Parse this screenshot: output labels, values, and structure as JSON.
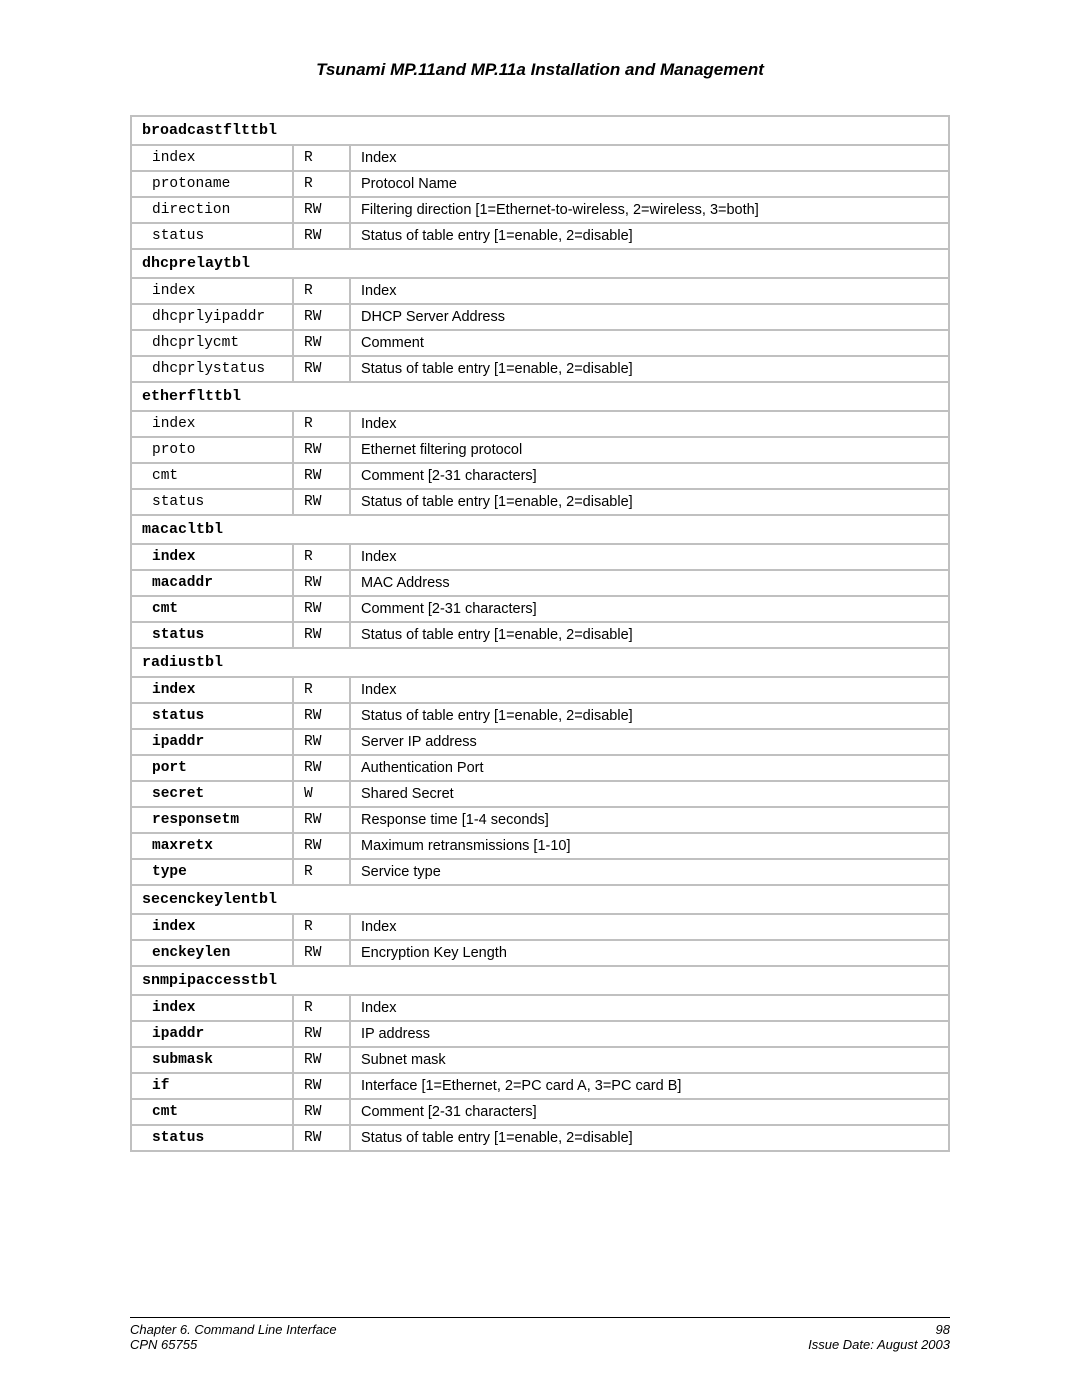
{
  "doc": {
    "title": "Tsunami MP.11and MP.11a Installation and Management",
    "footer": {
      "chapter": "Chapter 6.  Command Line Interface",
      "cpn": "CPN 65755",
      "page": "98",
      "issue": "Issue Date:  August 2003"
    }
  },
  "sections": {
    "broadcastflttbl": {
      "header": "broadcastflttbl",
      "rowbold": false,
      "rows": [
        {
          "name": "index",
          "access": "R",
          "desc": "Index"
        },
        {
          "name": "protoname",
          "access": "R",
          "desc": "Protocol Name"
        },
        {
          "name": "direction",
          "access": "RW",
          "desc": "Filtering direction [1=Ethernet-to-wireless, 2=wireless, 3=both]"
        },
        {
          "name": "status",
          "access": "RW",
          "desc": "Status of table entry [1=enable, 2=disable]"
        }
      ]
    },
    "dhcprelaytbl": {
      "header": "dhcprelaytbl",
      "rowbold": false,
      "rows": [
        {
          "name": "index",
          "access": "R",
          "desc": "Index"
        },
        {
          "name": "dhcprlyipaddr",
          "access": "RW",
          "desc": "DHCP Server Address"
        },
        {
          "name": "dhcprlycmt",
          "access": "RW",
          "desc": "Comment"
        },
        {
          "name": "dhcprlystatus",
          "access": "RW",
          "desc": "Status of table entry [1=enable, 2=disable]"
        }
      ]
    },
    "etherflttbl": {
      "header": "etherflttbl",
      "rowbold": false,
      "rows": [
        {
          "name": "index",
          "access": "R",
          "desc": "Index"
        },
        {
          "name": "proto",
          "access": "RW",
          "desc": "Ethernet filtering protocol"
        },
        {
          "name": "cmt",
          "access": "RW",
          "desc": "Comment [2-31 characters]"
        },
        {
          "name": "status",
          "access": "RW",
          "desc": "Status of table entry [1=enable, 2=disable]"
        }
      ]
    },
    "macacltbl": {
      "header": "macacltbl",
      "rowbold": true,
      "rows": [
        {
          "name": "index",
          "access": "R",
          "desc": "Index"
        },
        {
          "name": "macaddr",
          "access": "RW",
          "desc": "MAC Address"
        },
        {
          "name": "cmt",
          "access": "RW",
          "desc": "Comment [2-31 characters]"
        },
        {
          "name": "status",
          "access": "RW",
          "desc": "Status of table entry [1=enable, 2=disable]"
        }
      ]
    },
    "radiustbl": {
      "header": "radiustbl",
      "rowbold": true,
      "rows": [
        {
          "name": "index",
          "access": "R",
          "desc": "Index"
        },
        {
          "name": "status",
          "access": "RW",
          "desc": "Status of table entry [1=enable, 2=disable]"
        },
        {
          "name": "ipaddr",
          "access": "RW",
          "desc": "Server IP address"
        },
        {
          "name": "port",
          "access": "RW",
          "desc": "Authentication Port"
        },
        {
          "name": "secret",
          "access": "W",
          "desc": "Shared Secret"
        },
        {
          "name": "responsetm",
          "access": "RW",
          "desc": "Response time [1-4 seconds]"
        },
        {
          "name": "maxretx",
          "access": "RW",
          "desc": "Maximum retransmissions [1-10]"
        },
        {
          "name": "type",
          "access": "R",
          "desc": "Service type"
        }
      ]
    },
    "secenckeylentbl": {
      "header": "secenckeylentbl",
      "rowbold": true,
      "rows": [
        {
          "name": "index",
          "access": "R",
          "desc": "Index"
        },
        {
          "name": "enckeylen",
          "access": "RW",
          "desc": "Encryption Key Length"
        }
      ]
    },
    "snmpipaccesstbl": {
      "header": "snmpipaccesstbl",
      "rowbold": true,
      "rows": [
        {
          "name": "index",
          "access": "R",
          "desc": "Index"
        },
        {
          "name": "ipaddr",
          "access": "RW",
          "desc": "IP address"
        },
        {
          "name": "submask",
          "access": "RW",
          "desc": "Subnet mask"
        },
        {
          "name": "if",
          "access": "RW",
          "desc": "Interface [1=Ethernet, 2=PC card A, 3=PC card B]"
        },
        {
          "name": "cmt",
          "access": "RW",
          "desc": "Comment [2-31 characters]"
        },
        {
          "name": "status",
          "access": "RW",
          "desc": "Status of table entry [1=enable, 2=disable]"
        }
      ]
    }
  },
  "sectionOrder": [
    "broadcastflttbl",
    "dhcprelaytbl",
    "etherflttbl",
    "macacltbl",
    "radiustbl",
    "secenckeylentbl",
    "snmpipaccesstbl"
  ]
}
